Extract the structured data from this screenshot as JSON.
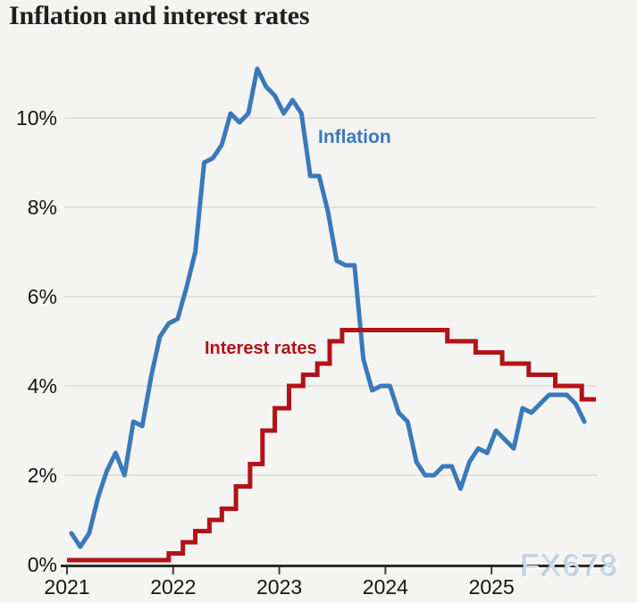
{
  "page": {
    "background_color": "#f4f4f2",
    "watermark": "FX678",
    "watermark_color": "#c9d9ec"
  },
  "chart_data": {
    "type": "line",
    "title": "Inflation and interest rates",
    "x_axis": {
      "tick_labels": [
        "2021",
        "2022",
        "2023",
        "2024",
        "2025"
      ],
      "tick_months": [
        0,
        12,
        24,
        36,
        48
      ],
      "unit": "months since Jan 2021"
    },
    "y_axis": {
      "tick_labels": [
        "0%",
        "2%",
        "4%",
        "6%",
        "8%",
        "10%"
      ],
      "tick_values": [
        0,
        2,
        4,
        6,
        8,
        10
      ],
      "grid_values": [
        2,
        4,
        6,
        8,
        10
      ],
      "ylim": [
        0,
        11.5
      ],
      "grid": true
    },
    "series": [
      {
        "name": "Inflation",
        "label": "Inflation",
        "type": "line",
        "color": "#3a79ba",
        "x_offset_months": 0.5,
        "values": [
          0.7,
          0.4,
          0.7,
          1.5,
          2.1,
          2.5,
          2.0,
          3.2,
          3.1,
          4.2,
          5.1,
          5.4,
          5.5,
          6.2,
          7.0,
          9.0,
          9.1,
          9.4,
          10.1,
          9.9,
          10.1,
          11.1,
          10.7,
          10.5,
          10.1,
          10.4,
          10.1,
          8.7,
          8.7,
          7.9,
          6.8,
          6.7,
          6.7,
          4.6,
          3.9,
          4.0,
          4.0,
          3.4,
          3.2,
          2.3,
          2.0,
          2.0,
          2.2,
          2.2,
          1.7,
          2.3,
          2.6,
          2.5,
          3.0,
          2.8,
          2.6,
          3.5,
          3.4,
          3.6,
          3.8,
          3.8,
          3.8,
          3.6,
          3.2
        ]
      },
      {
        "name": "Interest rates",
        "label": "Interest rates",
        "type": "step",
        "color": "#b11318",
        "steps": [
          [
            0,
            0.1
          ],
          [
            11.5,
            0.25
          ],
          [
            13.1,
            0.5
          ],
          [
            14.5,
            0.75
          ],
          [
            16.1,
            1.0
          ],
          [
            17.5,
            1.25
          ],
          [
            19.1,
            1.75
          ],
          [
            20.7,
            2.25
          ],
          [
            22.1,
            3.0
          ],
          [
            23.5,
            3.5
          ],
          [
            25.1,
            4.0
          ],
          [
            26.7,
            4.25
          ],
          [
            28.3,
            4.5
          ],
          [
            29.7,
            5.0
          ],
          [
            31.1,
            5.25
          ],
          [
            43.0,
            5.0
          ],
          [
            46.2,
            4.75
          ],
          [
            49.2,
            4.5
          ],
          [
            52.2,
            4.25
          ],
          [
            55.2,
            4.0
          ],
          [
            58.2,
            3.7
          ]
        ],
        "end_month": 59.8
      }
    ],
    "style": {
      "grid_color": "#d9d9d6",
      "axis_color": "#2b2b2b",
      "tick_color": "#3f3f3f",
      "label_color": "#151515"
    }
  }
}
